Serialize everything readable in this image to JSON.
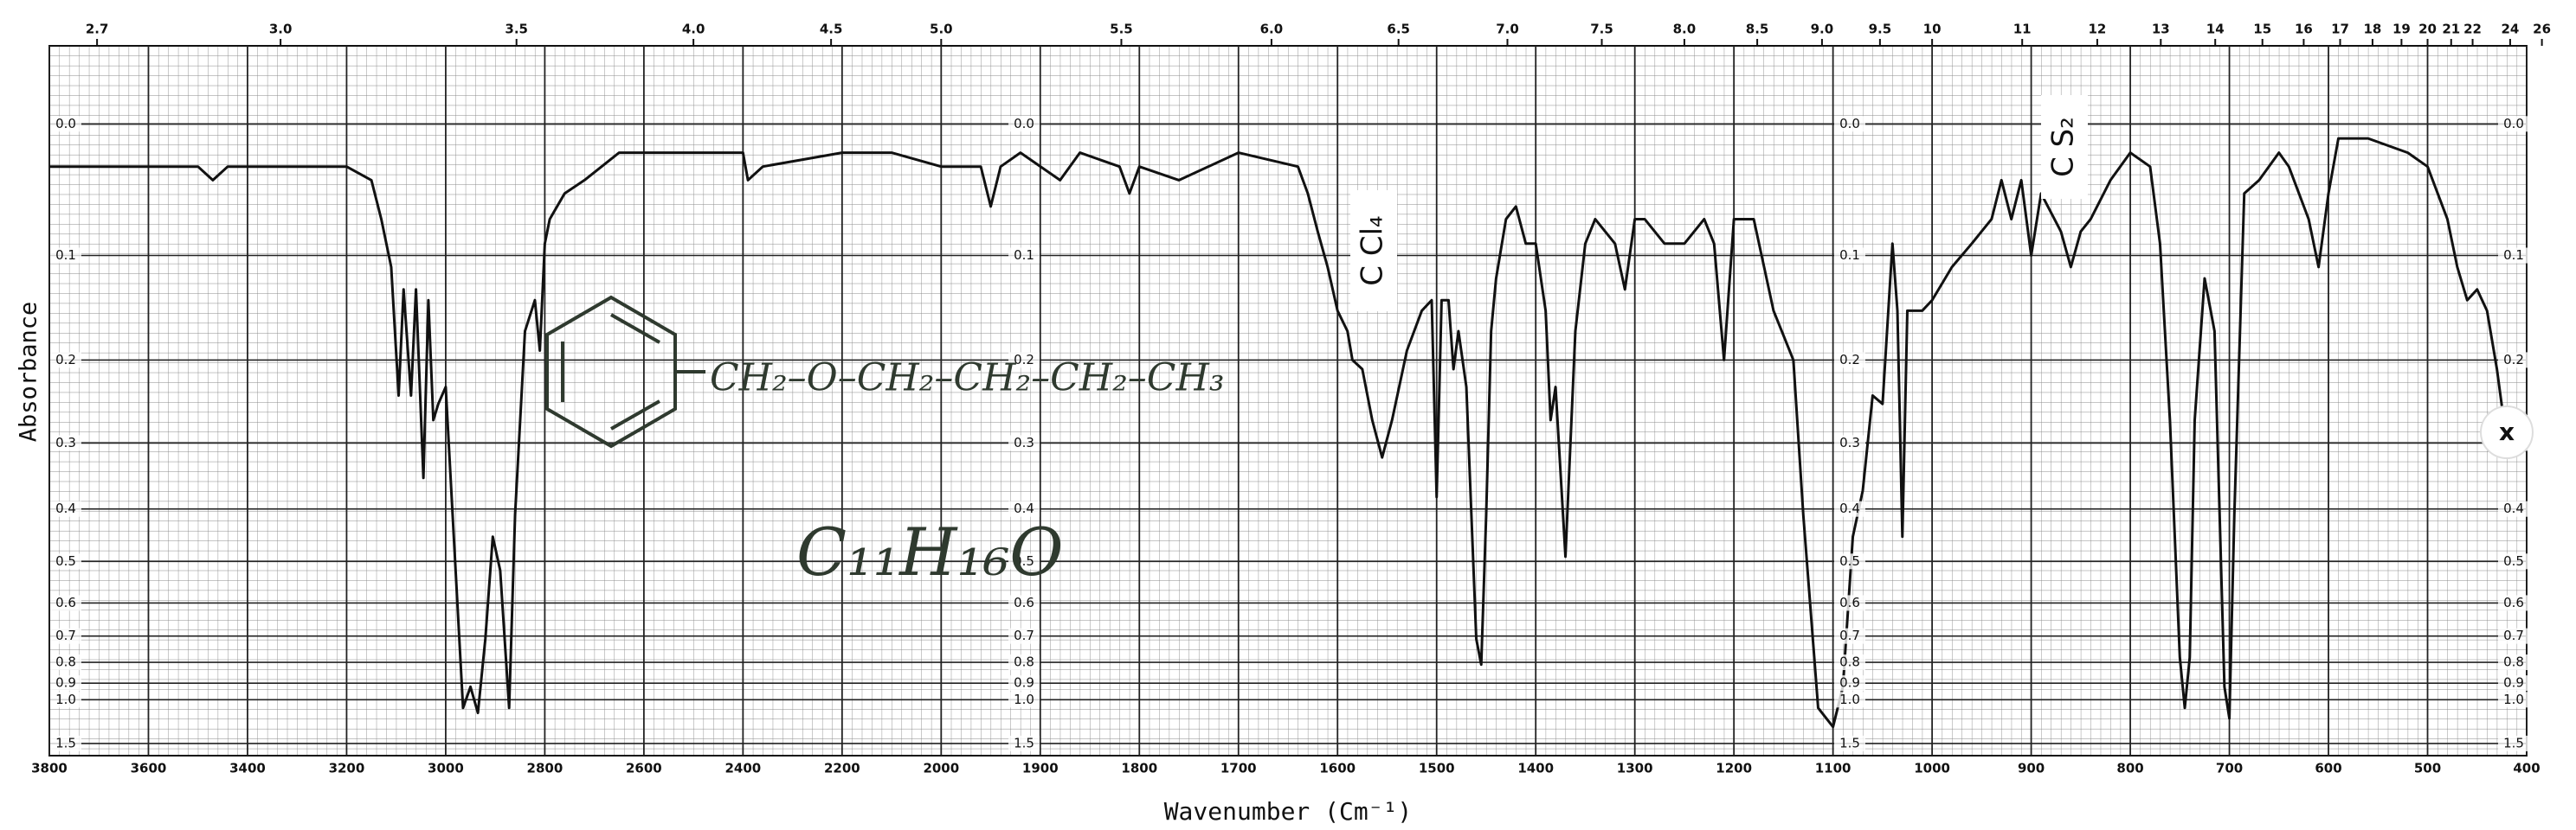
{
  "chart_data": {
    "type": "line",
    "x_label": "Wavenumber (Cm⁻¹)",
    "y_label": "Absorbance",
    "annotations": [
      "CH₂–O–CH₂–CH₂–CH₂–CH₃",
      "C₁₁H₁₆O",
      "C Cl₄",
      "C S₂",
      "x"
    ],
    "color": "#111111",
    "grid": true,
    "yscale": "transmittance",
    "xlim": [
      3800,
      400
    ],
    "ylim": [
      -0.05,
      1.9
    ],
    "xticks": [
      3800,
      3600,
      3400,
      3200,
      3000,
      2800,
      2600,
      2400,
      2200,
      2000,
      1900,
      1800,
      1700,
      1600,
      1500,
      1400,
      1300,
      1200,
      1100,
      1000,
      900,
      800,
      700,
      600,
      500,
      400
    ],
    "yticks": [
      {
        "value": 0,
        "label": "0.0"
      },
      0.1,
      0.2,
      0.3,
      0.4,
      0.5,
      0.6,
      0.7,
      0.8,
      0.9,
      {
        "value": 1,
        "label": "1.0"
      },
      1.5
    ],
    "x2ticks": [
      2.7,
      {
        "value": 3,
        "label": "3.0"
      },
      3.5,
      {
        "value": 4,
        "label": "4.0"
      },
      4.5,
      {
        "value": 5,
        "label": "5.0"
      },
      5.5,
      {
        "value": 6,
        "label": "6.0"
      },
      6.5,
      {
        "value": 7,
        "label": "7.0"
      },
      7.5,
      {
        "value": 8,
        "label": "8.0"
      },
      8.5,
      {
        "value": 9,
        "label": "9.0"
      },
      9.5,
      10,
      11,
      12,
      13,
      14,
      15,
      16,
      17,
      18,
      19,
      20,
      21,
      22,
      24,
      26
    ],
    "x": [
      3800,
      3700,
      3600,
      3500,
      3470,
      3440,
      3300,
      3200,
      3150,
      3130,
      3110,
      3095,
      3085,
      3070,
      3060,
      3045,
      3035,
      3025,
      3015,
      3000,
      2965,
      2950,
      2935,
      2920,
      2905,
      2890,
      2872,
      2860,
      2840,
      2820,
      2810,
      2800,
      2790,
      2760,
      2720,
      2650,
      2560,
      2400,
      2390,
      2360,
      2200,
      2100,
      2000,
      1960,
      1950,
      1940,
      1920,
      1880,
      1860,
      1820,
      1810,
      1800,
      1760,
      1700,
      1640,
      1630,
      1620,
      1610,
      1600,
      1590,
      1585,
      1575,
      1565,
      1555,
      1545,
      1530,
      1515,
      1505,
      1500,
      1495,
      1488,
      1483,
      1478,
      1470,
      1460,
      1455,
      1450,
      1445,
      1440,
      1430,
      1420,
      1410,
      1400,
      1390,
      1385,
      1380,
      1370,
      1360,
      1350,
      1340,
      1320,
      1310,
      1300,
      1290,
      1270,
      1250,
      1230,
      1220,
      1210,
      1200,
      1180,
      1160,
      1140,
      1130,
      1115,
      1100,
      1090,
      1080,
      1070,
      1060,
      1050,
      1040,
      1035,
      1030,
      1025,
      1010,
      1000,
      980,
      960,
      940,
      930,
      920,
      910,
      900,
      890,
      870,
      860,
      850,
      840,
      820,
      800,
      780,
      770,
      760,
      750,
      745,
      740,
      735,
      725,
      715,
      705,
      700,
      695,
      685,
      670,
      650,
      640,
      620,
      610,
      600,
      590,
      560,
      520,
      500,
      480,
      470,
      460,
      450,
      440,
      430,
      420
    ],
    "values": [
      0.03,
      0.03,
      0.03,
      0.03,
      0.04,
      0.03,
      0.03,
      0.03,
      0.04,
      0.07,
      0.11,
      0.24,
      0.13,
      0.24,
      0.13,
      0.35,
      0.14,
      0.27,
      0.25,
      0.23,
      1.06,
      0.92,
      1.1,
      0.71,
      0.45,
      0.52,
      1.06,
      0.41,
      0.17,
      0.14,
      0.19,
      0.09,
      0.07,
      0.05,
      0.04,
      0.02,
      0.02,
      0.02,
      0.04,
      0.03,
      0.02,
      0.02,
      0.03,
      0.03,
      0.06,
      0.03,
      0.02,
      0.04,
      0.02,
      0.03,
      0.05,
      0.03,
      0.04,
      0.02,
      0.03,
      0.05,
      0.08,
      0.11,
      0.15,
      0.17,
      0.2,
      0.21,
      0.27,
      0.32,
      0.27,
      0.19,
      0.15,
      0.14,
      0.38,
      0.14,
      0.14,
      0.21,
      0.17,
      0.23,
      0.71,
      0.81,
      0.41,
      0.17,
      0.12,
      0.07,
      0.06,
      0.09,
      0.09,
      0.15,
      0.27,
      0.23,
      0.49,
      0.17,
      0.09,
      0.07,
      0.09,
      0.13,
      0.07,
      0.07,
      0.09,
      0.09,
      0.07,
      0.09,
      0.2,
      0.07,
      0.07,
      0.15,
      0.2,
      0.41,
      1.06,
      1.24,
      0.92,
      0.45,
      0.37,
      0.24,
      0.25,
      0.09,
      0.15,
      0.45,
      0.15,
      0.15,
      0.14,
      0.11,
      0.09,
      0.07,
      0.04,
      0.07,
      0.04,
      0.1,
      0.05,
      0.08,
      0.11,
      0.08,
      0.07,
      0.04,
      0.02,
      0.03,
      0.09,
      0.27,
      0.78,
      1.06,
      0.78,
      0.27,
      0.12,
      0.17,
      0.92,
      1.15,
      0.41,
      0.05,
      0.04,
      0.02,
      0.03,
      0.07,
      0.11,
      0.05,
      0.01,
      0.01,
      0.02,
      0.03,
      0.07,
      0.11,
      0.14,
      0.13,
      0.15,
      0.21,
      0.3
    ]
  }
}
